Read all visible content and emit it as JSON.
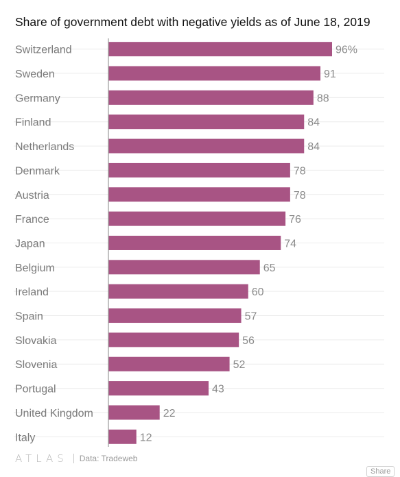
{
  "chart_data": {
    "type": "bar",
    "orientation": "horizontal",
    "title": "Share of government debt with negative yields as of June 18, 2019",
    "categories": [
      "Switzerland",
      "Sweden",
      "Germany",
      "Finland",
      "Netherlands",
      "Denmark",
      "Austria",
      "France",
      "Japan",
      "Belgium",
      "Ireland",
      "Spain",
      "Slovakia",
      "Slovenia",
      "Portugal",
      "United Kingdom",
      "Italy"
    ],
    "values": [
      96,
      91,
      88,
      84,
      84,
      78,
      78,
      76,
      74,
      65,
      60,
      57,
      56,
      52,
      43,
      22,
      12
    ],
    "value_labels": [
      "96%",
      "91",
      "88",
      "84",
      "84",
      "78",
      "78",
      "76",
      "74",
      "65",
      "60",
      "57",
      "56",
      "52",
      "43",
      "22",
      "12"
    ],
    "xlim": [
      0,
      100
    ],
    "grid": true,
    "colors": {
      "bar": "#a85484",
      "grid": "#ececec",
      "axis": "#999999"
    }
  },
  "footer": {
    "logo": "ATLAS",
    "source": "Data: Tradeweb",
    "share_label": "Share"
  }
}
